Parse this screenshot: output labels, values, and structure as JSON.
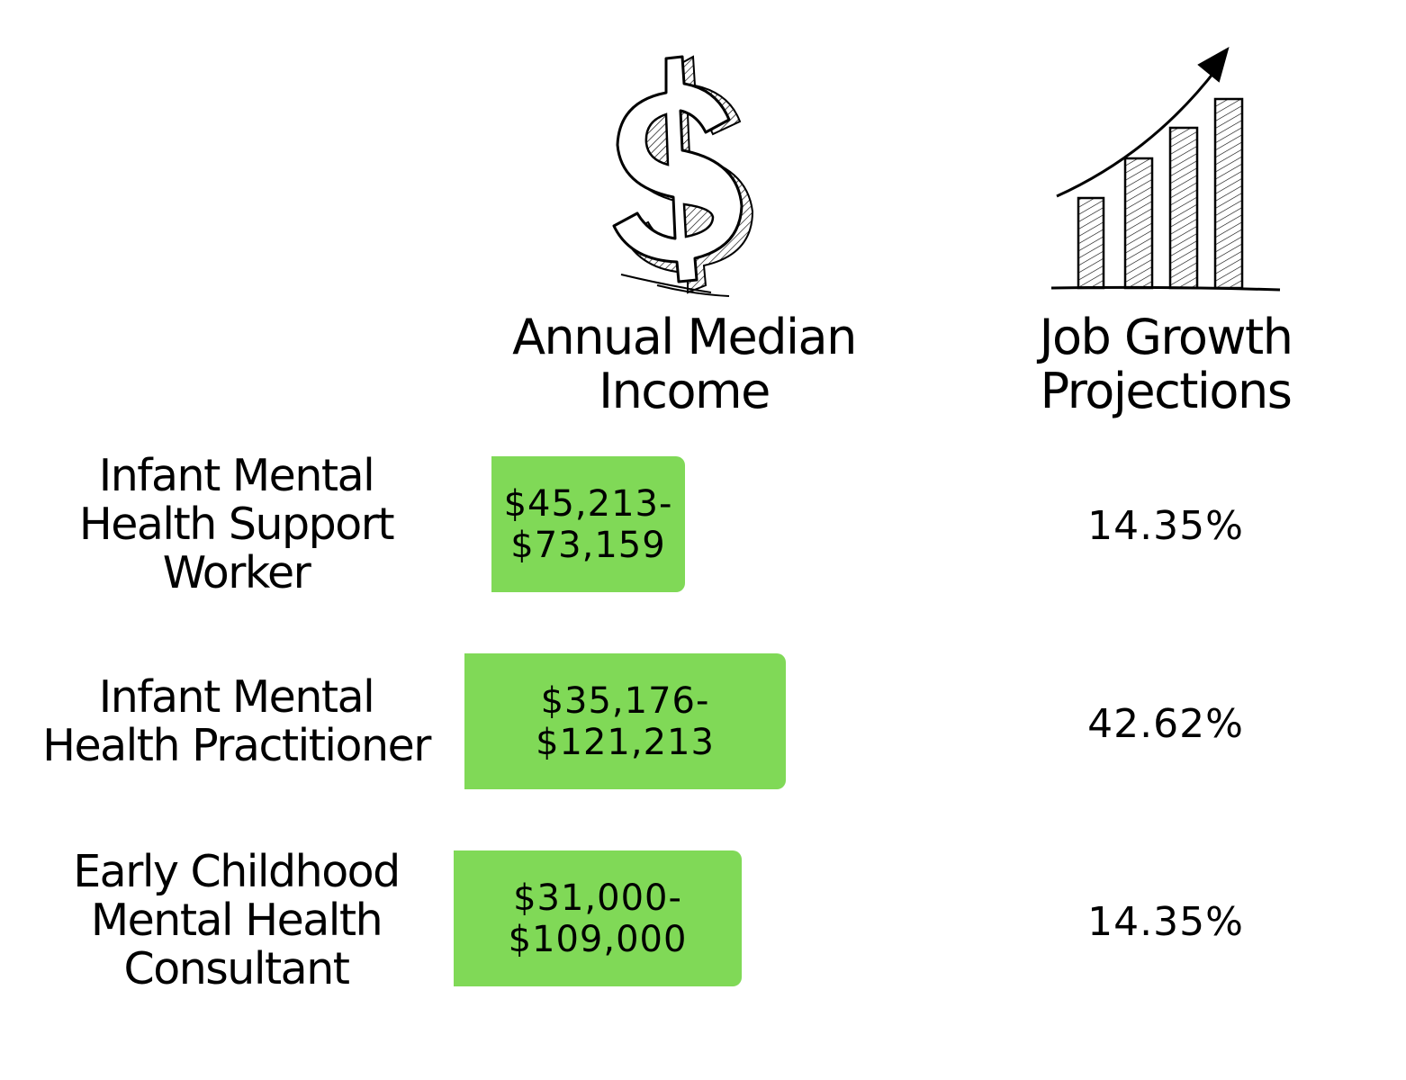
{
  "icons": {
    "income": "dollar-sign-icon",
    "growth": "rising-bar-chart-icon"
  },
  "colors": {
    "income_box": "#80d957",
    "text": "#000000",
    "background": "#ffffff"
  },
  "headers": {
    "income": [
      "Annual Median",
      "Income"
    ],
    "growth": [
      "Job Growth",
      "Projections"
    ]
  },
  "rows": [
    {
      "title": [
        "Infant Mental",
        "Health Support",
        "Worker"
      ],
      "income": [
        "$45,213-",
        "$73,159"
      ],
      "growth": "14.35%"
    },
    {
      "title": [
        "Infant Mental",
        "Health Practitioner"
      ],
      "income": [
        "$35,176-",
        "$121,213"
      ],
      "growth": "42.62%"
    },
    {
      "title": [
        "Early Childhood",
        "Mental Health",
        "Consultant"
      ],
      "income": [
        "$31,000-",
        "$109,000"
      ],
      "growth": "14.35%"
    }
  ]
}
